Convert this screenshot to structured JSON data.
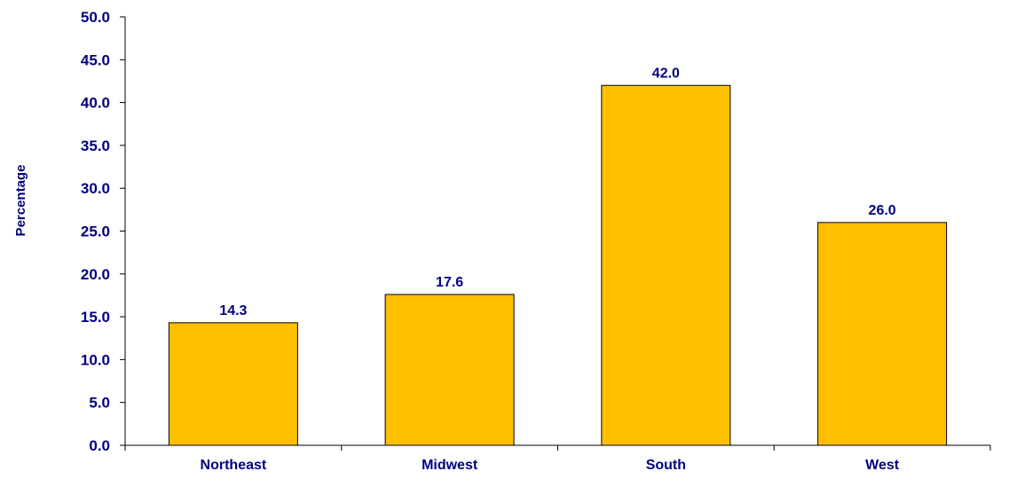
{
  "chart_data": {
    "type": "bar",
    "title": "",
    "xlabel": "",
    "ylabel": "Percentage",
    "categories": [
      "Northeast",
      "Midwest",
      "South",
      "West"
    ],
    "values": [
      14.3,
      17.6,
      42.0,
      26.0
    ],
    "value_labels": [
      "14.3",
      "17.6",
      "42.0",
      "26.0"
    ],
    "ylim": [
      0,
      50
    ],
    "yticks": [
      0,
      5,
      10,
      15,
      20,
      25,
      30,
      35,
      40,
      45,
      50
    ],
    "ytick_labels": [
      "0.0",
      "5.0",
      "10.0",
      "15.0",
      "20.0",
      "25.0",
      "30.0",
      "35.0",
      "40.0",
      "45.0",
      "50.0"
    ],
    "grid": false,
    "legend": "none",
    "colors": {
      "bar": "#FFC000",
      "bar_outline": "#000000",
      "text": "#000080",
      "axis": "#000000"
    }
  }
}
